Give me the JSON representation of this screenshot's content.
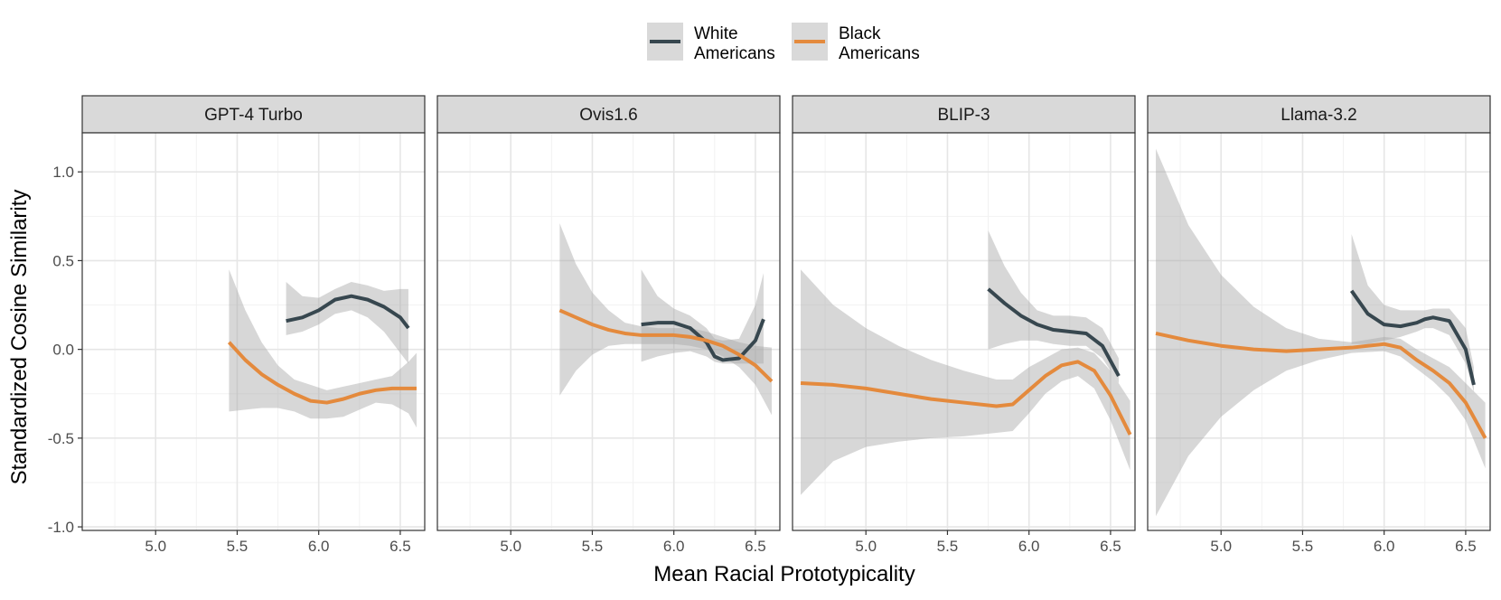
{
  "chart_data": {
    "type": "line",
    "xlabel": "Mean Racial Prototypicality",
    "ylabel": "Standardized Cosine Similarity",
    "xlim": [
      4.55,
      6.65
    ],
    "ylim": [
      -1.02,
      1.22
    ],
    "x_ticks": [
      5.0,
      5.5,
      6.0,
      6.5
    ],
    "x_tick_labels": [
      "5.0",
      "5.5",
      "6.0",
      "6.5"
    ],
    "y_ticks": [
      1.0,
      0.5,
      0.0,
      -0.5,
      -1.0
    ],
    "y_tick_labels": [
      "1.0",
      "0.5",
      "0.0",
      "-0.5",
      "-1.0"
    ],
    "legend": {
      "position": "top",
      "entries": [
        {
          "label_line1": "White",
          "label_line2": "Americans",
          "color": "#37474f"
        },
        {
          "label_line1": "Black",
          "label_line2": "Americans",
          "color": "#e48a3d"
        }
      ]
    },
    "colors": {
      "white": "#37474f",
      "black": "#e48a3d",
      "ribbon": "#a6a6a6",
      "strip_bg": "#d9d9d9"
    },
    "panels": [
      {
        "title": "GPT-4 Turbo",
        "series": [
          {
            "name": "White Americans",
            "color_key": "white",
            "x": [
              5.8,
              5.9,
              6.0,
              6.1,
              6.2,
              6.3,
              6.4,
              6.5,
              6.55
            ],
            "y": [
              0.16,
              0.18,
              0.22,
              0.28,
              0.3,
              0.28,
              0.24,
              0.18,
              0.12
            ],
            "lower": [
              0.08,
              0.1,
              0.14,
              0.2,
              0.22,
              0.18,
              0.1,
              -0.02,
              -0.08
            ],
            "upper": [
              0.38,
              0.3,
              0.29,
              0.34,
              0.38,
              0.36,
              0.33,
              0.34,
              0.34
            ]
          },
          {
            "name": "Black Americans",
            "color_key": "black",
            "x": [
              5.45,
              5.55,
              5.65,
              5.75,
              5.85,
              5.95,
              6.05,
              6.15,
              6.25,
              6.35,
              6.45,
              6.55,
              6.6
            ],
            "y": [
              0.04,
              -0.06,
              -0.14,
              -0.2,
              -0.25,
              -0.29,
              -0.3,
              -0.28,
              -0.25,
              -0.23,
              -0.22,
              -0.22,
              -0.22
            ],
            "lower": [
              -0.35,
              -0.34,
              -0.33,
              -0.33,
              -0.35,
              -0.39,
              -0.39,
              -0.38,
              -0.34,
              -0.3,
              -0.31,
              -0.36,
              -0.44
            ],
            "upper": [
              0.45,
              0.22,
              0.04,
              -0.09,
              -0.17,
              -0.2,
              -0.23,
              -0.21,
              -0.19,
              -0.17,
              -0.15,
              -0.07,
              -0.02
            ]
          }
        ]
      },
      {
        "title": "Ovis1.6",
        "series": [
          {
            "name": "White Americans",
            "color_key": "white",
            "x": [
              5.8,
              5.9,
              6.0,
              6.1,
              6.2,
              6.25,
              6.3,
              6.4,
              6.5,
              6.55
            ],
            "y": [
              0.14,
              0.15,
              0.15,
              0.12,
              0.04,
              -0.04,
              -0.06,
              -0.05,
              0.05,
              0.17
            ],
            "lower": [
              -0.07,
              -0.04,
              -0.02,
              -0.01,
              -0.04,
              -0.07,
              -0.08,
              -0.08,
              -0.08,
              -0.08
            ],
            "upper": [
              0.45,
              0.3,
              0.23,
              0.19,
              0.12,
              0.06,
              0.05,
              0.06,
              0.25,
              0.43
            ]
          },
          {
            "name": "Black Americans",
            "color_key": "black",
            "x": [
              5.3,
              5.4,
              5.5,
              5.6,
              5.7,
              5.8,
              5.9,
              6.0,
              6.1,
              6.2,
              6.3,
              6.4,
              6.5,
              6.6
            ],
            "y": [
              0.22,
              0.18,
              0.14,
              0.11,
              0.09,
              0.08,
              0.08,
              0.08,
              0.07,
              0.05,
              0.02,
              -0.03,
              -0.09,
              -0.18
            ],
            "lower": [
              -0.26,
              -0.12,
              -0.03,
              0.02,
              0.03,
              0.03,
              0.03,
              0.03,
              0.02,
              0.0,
              -0.04,
              -0.1,
              -0.2,
              -0.37
            ],
            "upper": [
              0.71,
              0.48,
              0.32,
              0.22,
              0.15,
              0.13,
              0.12,
              0.12,
              0.12,
              0.1,
              0.07,
              0.04,
              0.02,
              0.01
            ]
          }
        ]
      },
      {
        "title": "BLIP-3",
        "series": [
          {
            "name": "White Americans",
            "color_key": "white",
            "x": [
              5.75,
              5.85,
              5.95,
              6.05,
              6.15,
              6.25,
              6.35,
              6.45,
              6.55
            ],
            "y": [
              0.34,
              0.26,
              0.19,
              0.14,
              0.11,
              0.1,
              0.09,
              0.02,
              -0.15
            ],
            "lower": [
              0.0,
              0.03,
              0.05,
              0.05,
              0.03,
              0.02,
              0.02,
              -0.05,
              -0.19
            ],
            "upper": [
              0.67,
              0.47,
              0.32,
              0.22,
              0.19,
              0.19,
              0.18,
              0.12,
              -0.05
            ]
          },
          {
            "name": "Black Americans",
            "color_key": "black",
            "x": [
              4.6,
              4.8,
              5.0,
              5.2,
              5.4,
              5.6,
              5.8,
              5.9,
              6.0,
              6.1,
              6.2,
              6.3,
              6.4,
              6.5,
              6.62
            ],
            "y": [
              -0.19,
              -0.2,
              -0.22,
              -0.25,
              -0.28,
              -0.3,
              -0.32,
              -0.31,
              -0.23,
              -0.15,
              -0.09,
              -0.07,
              -0.12,
              -0.26,
              -0.48
            ],
            "lower": [
              -0.82,
              -0.63,
              -0.55,
              -0.52,
              -0.5,
              -0.49,
              -0.47,
              -0.46,
              -0.36,
              -0.25,
              -0.18,
              -0.15,
              -0.22,
              -0.4,
              -0.68
            ],
            "upper": [
              0.45,
              0.25,
              0.12,
              0.02,
              -0.06,
              -0.12,
              -0.17,
              -0.17,
              -0.1,
              -0.05,
              0.0,
              0.01,
              -0.02,
              -0.12,
              -0.29
            ]
          }
        ]
      },
      {
        "title": "Llama-3.2",
        "series": [
          {
            "name": "White Americans",
            "color_key": "white",
            "x": [
              5.8,
              5.9,
              6.0,
              6.1,
              6.2,
              6.25,
              6.3,
              6.4,
              6.5,
              6.55
            ],
            "y": [
              0.33,
              0.2,
              0.14,
              0.13,
              0.15,
              0.17,
              0.18,
              0.16,
              0.0,
              -0.2
            ],
            "lower": [
              0.03,
              0.03,
              0.05,
              0.07,
              0.1,
              0.12,
              0.12,
              0.08,
              -0.08,
              -0.24
            ],
            "upper": [
              0.65,
              0.36,
              0.25,
              0.22,
              0.22,
              0.22,
              0.23,
              0.23,
              0.12,
              -0.1
            ]
          },
          {
            "name": "Black Americans",
            "color_key": "black",
            "x": [
              4.6,
              4.8,
              5.0,
              5.2,
              5.4,
              5.6,
              5.8,
              6.0,
              6.1,
              6.2,
              6.3,
              6.4,
              6.5,
              6.62
            ],
            "y": [
              0.09,
              0.05,
              0.02,
              0.0,
              -0.01,
              0.0,
              0.01,
              0.03,
              0.01,
              -0.06,
              -0.12,
              -0.19,
              -0.3,
              -0.5
            ],
            "lower": [
              -0.94,
              -0.6,
              -0.38,
              -0.23,
              -0.12,
              -0.06,
              -0.02,
              -0.01,
              -0.04,
              -0.11,
              -0.18,
              -0.27,
              -0.4,
              -0.67
            ],
            "upper": [
              1.13,
              0.7,
              0.42,
              0.24,
              0.12,
              0.06,
              0.04,
              0.07,
              0.06,
              0.0,
              -0.05,
              -0.1,
              -0.19,
              -0.3
            ]
          }
        ]
      }
    ]
  }
}
